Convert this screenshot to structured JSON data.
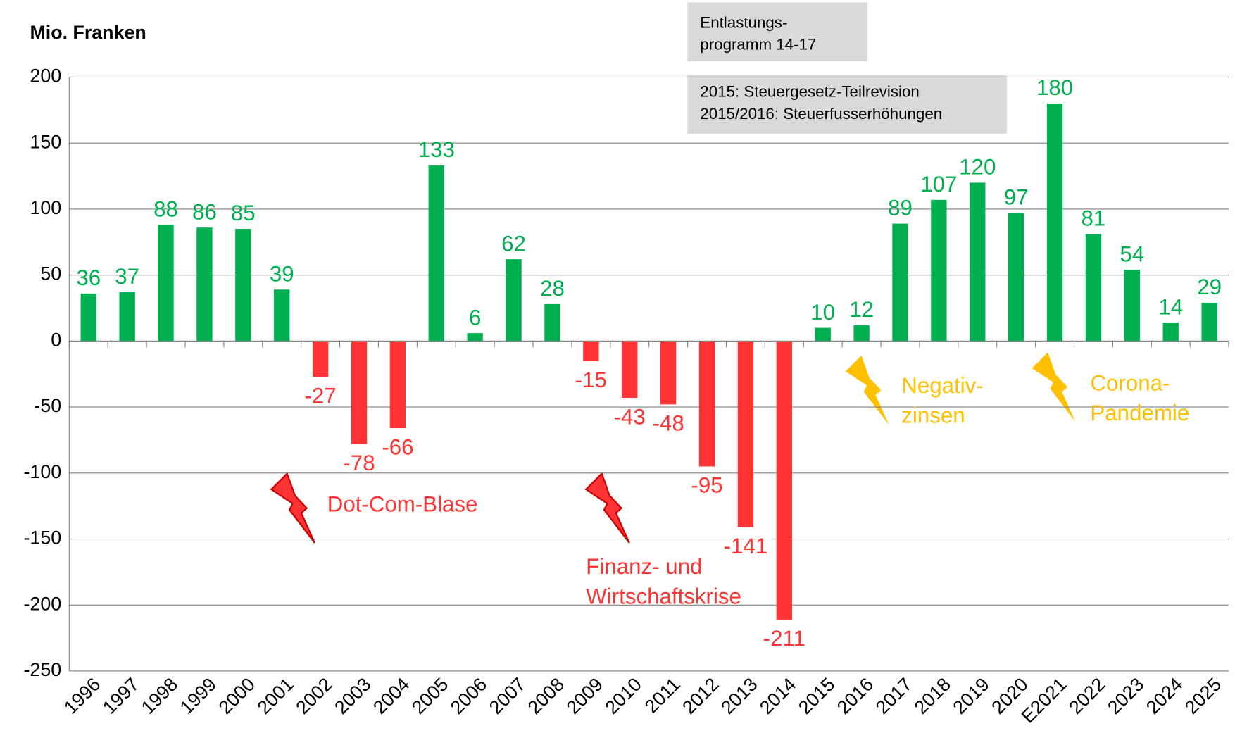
{
  "chart_data": {
    "type": "bar",
    "y_axis_label": "Mio. Franken",
    "categories": [
      "1996",
      "1997",
      "1998",
      "1999",
      "2000",
      "2001",
      "2002",
      "2003",
      "2004",
      "2005",
      "2006",
      "2007",
      "2008",
      "2009",
      "2010",
      "2011",
      "2012",
      "2013",
      "2014",
      "2015",
      "2016",
      "2017",
      "2018",
      "2019",
      "2020",
      "E2021",
      "2022",
      "2023",
      "2024",
      "2025"
    ],
    "values": [
      36,
      37,
      88,
      86,
      85,
      39,
      -27,
      -78,
      -66,
      133,
      6,
      62,
      28,
      -15,
      -43,
      -48,
      -95,
      -141,
      -211,
      10,
      12,
      89,
      107,
      120,
      97,
      180,
      81,
      54,
      14,
      29
    ],
    "positive_color": "#00b050",
    "negative_color": "#ff3333",
    "ylim": [
      -250,
      200
    ],
    "yticks": [
      -250,
      -200,
      -150,
      -100,
      -50,
      0,
      50,
      100,
      150,
      200
    ],
    "grid": true,
    "notes": [
      {
        "lines": [
          "Entlastungs-",
          "programm 14-17"
        ]
      },
      {
        "lines": [
          "2015: Steuergesetz-Teilrevision",
          "2015/2016: Steuerfusserhöhungen"
        ]
      }
    ],
    "annotations": [
      {
        "lines": [
          "Dot-Com-Blase"
        ],
        "color": "#ff3333"
      },
      {
        "lines": [
          "Finanz- und",
          "Wirtschaftskrise"
        ],
        "color": "#ff3333"
      },
      {
        "lines": [
          "Negativ-",
          "zinsen"
        ],
        "color": "#ffc000"
      },
      {
        "lines": [
          "Corona-",
          "Pandemie"
        ],
        "color": "#ffc000"
      }
    ]
  }
}
